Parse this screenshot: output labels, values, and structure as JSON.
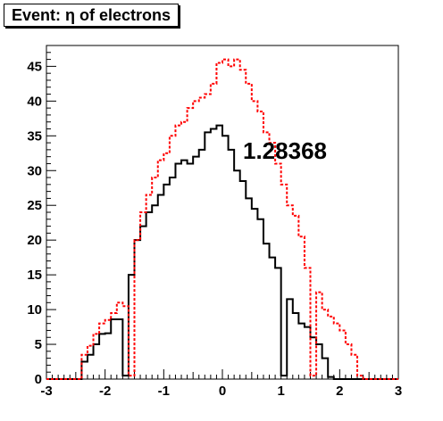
{
  "chart_data": {
    "type": "histogram",
    "title": "Event: η of electrons",
    "annotation": "1.28368",
    "xlim": [
      -3,
      3
    ],
    "ylim": [
      0,
      48
    ],
    "xticks": [
      -3,
      -2,
      -1,
      0,
      1,
      2,
      3
    ],
    "yticks": [
      0,
      5,
      10,
      15,
      20,
      25,
      30,
      35,
      40,
      45
    ],
    "bin_edges": [
      -3.0,
      -2.9,
      -2.8,
      -2.7,
      -2.6,
      -2.5,
      -2.4,
      -2.3,
      -2.2,
      -2.1,
      -2.0,
      -1.9,
      -1.8,
      -1.7,
      -1.6,
      -1.5,
      -1.4,
      -1.3,
      -1.2,
      -1.1,
      -1.0,
      -0.9,
      -0.8,
      -0.7,
      -0.6,
      -0.5,
      -0.4,
      -0.3,
      -0.2,
      -0.1,
      0.0,
      0.1,
      0.2,
      0.3,
      0.4,
      0.5,
      0.6,
      0.7,
      0.8,
      0.9,
      1.0,
      1.1,
      1.2,
      1.3,
      1.4,
      1.5,
      1.6,
      1.7,
      1.8,
      1.9,
      2.0,
      2.1,
      2.2,
      2.3,
      2.4,
      2.5,
      2.6,
      2.7,
      2.8,
      2.9,
      3.0
    ],
    "series": [
      {
        "color": "#000000",
        "style": "solid",
        "values": [
          0,
          0,
          0,
          0,
          0,
          0,
          2.5,
          3.5,
          5.0,
          6.5,
          6.6,
          8.6,
          8.6,
          0.5,
          15.0,
          20.0,
          22.0,
          24.0,
          25.0,
          26.5,
          28.0,
          29.0,
          31.0,
          31.5,
          31.0,
          32.0,
          33.0,
          35.5,
          36.0,
          36.5,
          35.0,
          33.0,
          30.0,
          28.5,
          26.0,
          24.5,
          23.0,
          19.5,
          17.5,
          16.0,
          0.5,
          11.5,
          9.5,
          8.0,
          7.5,
          6.0,
          5.0,
          3.0,
          0.3,
          0,
          0,
          0,
          0,
          0,
          0,
          0,
          0,
          0,
          0,
          0
        ]
      },
      {
        "color": "#ff0000",
        "style": "dashed",
        "values": [
          0,
          0,
          0,
          0,
          0,
          0,
          3.5,
          4.8,
          6.5,
          8.0,
          8.5,
          9.5,
          11.0,
          10.5,
          0.5,
          20.0,
          24.0,
          26.5,
          29.0,
          31.5,
          32.5,
          35.0,
          36.5,
          37.0,
          39.0,
          40.0,
          40.5,
          41.0,
          42.5,
          45.5,
          46.0,
          45.0,
          46.0,
          44.5,
          42.5,
          40.0,
          38.5,
          35.5,
          34.0,
          31.0,
          28.0,
          25.0,
          23.5,
          20.5,
          16.0,
          0.5,
          12.5,
          10.0,
          9.0,
          8.0,
          7.0,
          5.0,
          3.5,
          0.5,
          0,
          0,
          0,
          0,
          0,
          0
        ]
      }
    ]
  }
}
